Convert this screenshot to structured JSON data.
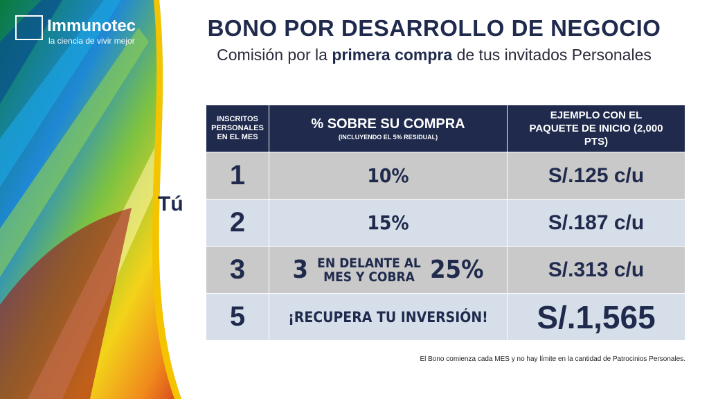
{
  "logo": {
    "brand": "Immunotec",
    "tagline": "la ciencia de vivir mejor"
  },
  "header": {
    "title": "BONO POR DESARROLLO DE NEGOCIO",
    "subtitle": {
      "before": "Comisión por la",
      "bold": "primera compra",
      "after": "de tus invitados Personales"
    }
  },
  "side_label": "Tú",
  "table": {
    "headers": [
      {
        "text": "INSCRITOS PERSONALES EN EL MES"
      },
      {
        "text": "% SOBRE SU COMPRA",
        "note": "(INCLUYENDO EL 5% RESIDUAL)"
      },
      {
        "text": "EJEMPLO CON EL PAQUETE DE INICIO (2,000 PTS)"
      }
    ],
    "rows": [
      [
        "1",
        "10%",
        "S/.125 c/u"
      ],
      [
        "2",
        "15%",
        "S/.187 c/u"
      ],
      [
        "3",
        {
          "lead": "3",
          "middle": "EN DELANTE AL MES Y COBRA",
          "end": "25%"
        },
        "S/.313 c/u"
      ],
      [
        "5",
        "¡RECUPERA TU INVERSIÓN!",
        "S/.1,565"
      ]
    ]
  },
  "footer": "El Bono comienza cada MES y no hay límite en la cantidad de Patrocinios Personales."
}
